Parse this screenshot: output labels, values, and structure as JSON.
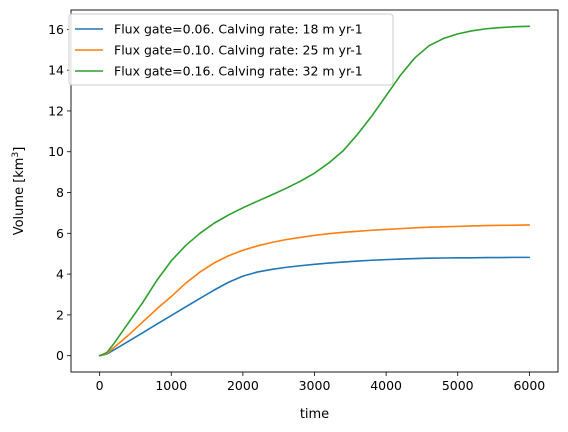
{
  "chart_data": {
    "type": "line",
    "xlabel": "time",
    "ylabel_main": "Volume [km",
    "ylabel_sup": "3",
    "ylabel_close": "]",
    "xlim": [
      -400,
      6400
    ],
    "ylim": [
      -0.8,
      16.95
    ],
    "xticks": [
      0,
      1000,
      2000,
      3000,
      4000,
      5000,
      6000
    ],
    "yticks": [
      0,
      2,
      4,
      6,
      8,
      10,
      12,
      14,
      16
    ],
    "grid": false,
    "legend_position": "upper-left",
    "series": [
      {
        "name": "Flux gate=0.06. Calving rate: 18 m yr-1",
        "color": "#1f77b4",
        "x": [
          0,
          100,
          200,
          400,
          600,
          800,
          1000,
          1200,
          1400,
          1600,
          1800,
          2000,
          2200,
          2400,
          2600,
          2800,
          3000,
          3200,
          3400,
          3600,
          3800,
          4000,
          4200,
          4400,
          4600,
          4800,
          5000,
          5200,
          5400,
          5600,
          5800,
          6000
        ],
        "y": [
          0,
          0.08,
          0.28,
          0.7,
          1.12,
          1.55,
          1.97,
          2.39,
          2.81,
          3.22,
          3.6,
          3.9,
          4.1,
          4.23,
          4.33,
          4.41,
          4.48,
          4.54,
          4.59,
          4.64,
          4.68,
          4.71,
          4.74,
          4.76,
          4.78,
          4.79,
          4.8,
          4.8,
          4.81,
          4.81,
          4.82,
          4.82
        ]
      },
      {
        "name": "Flux gate=0.10. Calving rate: 25 m yr-1",
        "color": "#ff7f0e",
        "x": [
          0,
          100,
          200,
          400,
          600,
          800,
          1000,
          1200,
          1400,
          1600,
          1800,
          2000,
          2200,
          2400,
          2600,
          2800,
          3000,
          3200,
          3400,
          3600,
          3800,
          4000,
          4200,
          4400,
          4600,
          4800,
          5000,
          5200,
          5400,
          5600,
          5800,
          6000
        ],
        "y": [
          0,
          0.1,
          0.4,
          1.0,
          1.65,
          2.3,
          2.9,
          3.55,
          4.1,
          4.55,
          4.9,
          5.17,
          5.38,
          5.55,
          5.69,
          5.8,
          5.9,
          5.98,
          6.05,
          6.1,
          6.15,
          6.19,
          6.23,
          6.27,
          6.3,
          6.32,
          6.34,
          6.36,
          6.38,
          6.39,
          6.4,
          6.41
        ]
      },
      {
        "name": "Flux gate=0.16. Calving rate: 32 m yr-1",
        "color": "#2ca02c",
        "x": [
          0,
          100,
          200,
          400,
          600,
          800,
          1000,
          1200,
          1400,
          1600,
          1800,
          2000,
          2200,
          2400,
          2600,
          2800,
          3000,
          3200,
          3400,
          3600,
          3800,
          4000,
          4200,
          4400,
          4600,
          4800,
          5000,
          5200,
          5400,
          5600,
          5800,
          6000
        ],
        "y": [
          0,
          0.15,
          0.6,
          1.6,
          2.6,
          3.7,
          4.65,
          5.4,
          6.0,
          6.5,
          6.9,
          7.25,
          7.57,
          7.88,
          8.2,
          8.55,
          8.95,
          9.45,
          10.05,
          10.85,
          11.75,
          12.75,
          13.75,
          14.6,
          15.2,
          15.55,
          15.78,
          15.93,
          16.03,
          16.09,
          16.13,
          16.15
        ]
      }
    ]
  }
}
